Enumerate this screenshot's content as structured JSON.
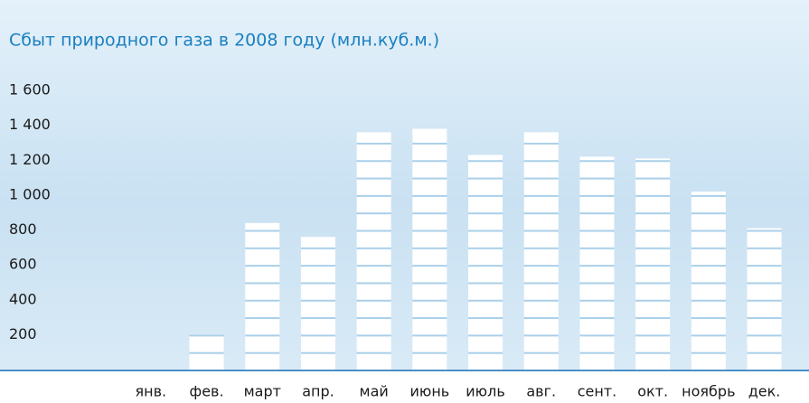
{
  "chart_data": {
    "type": "bar",
    "title": "Сбыт природного газа в 2008 году (млн.куб.м.)",
    "categories": [
      "янв.",
      "фев.",
      "март",
      "апр.",
      "май",
      "июнь",
      "июль",
      "авг.",
      "сент.",
      "окт.",
      "ноябрь",
      "дек."
    ],
    "values": [
      null,
      200,
      840,
      760,
      1360,
      1380,
      1230,
      1360,
      1220,
      1210,
      1020,
      810
    ],
    "color": "#ffffff",
    "ylim": [
      0,
      1600
    ],
    "yticks": [
      200,
      400,
      600,
      800,
      {
        "value": 1000,
        "label": "1 000"
      },
      {
        "value": 1200,
        "label": "1 200"
      },
      {
        "value": 1400,
        "label": "1 400"
      },
      {
        "value": 1600,
        "label": "1 600"
      }
    ]
  }
}
